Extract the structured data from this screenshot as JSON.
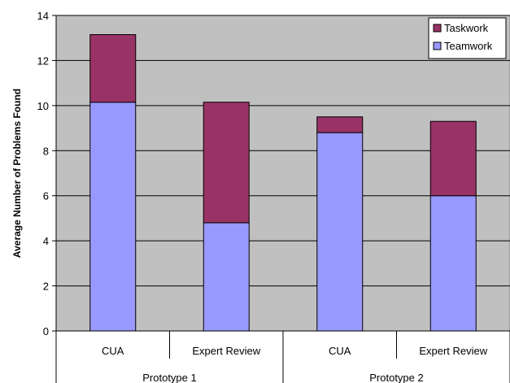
{
  "chart_data": {
    "type": "bar",
    "stacked": true,
    "title": "",
    "xlabel": "",
    "ylabel": "Average Number of Problems Found",
    "ylim": [
      0,
      14
    ],
    "yticks": [
      0,
      2,
      4,
      6,
      8,
      10,
      12,
      14
    ],
    "grid": true,
    "legend_position": "top-right",
    "plot_background": "#c0c0c0",
    "categories": [
      "CUA",
      "Expert Review",
      "CUA",
      "Expert Review"
    ],
    "groups": [
      {
        "label": "Prototype 1",
        "categories": [
          "CUA",
          "Expert Review"
        ]
      },
      {
        "label": "Prototype 2",
        "categories": [
          "CUA",
          "Expert Review"
        ]
      }
    ],
    "series": [
      {
        "name": "Teamwork",
        "color": "#9999ff",
        "values": [
          10.15,
          4.8,
          8.8,
          6.0
        ]
      },
      {
        "name": "Taskwork",
        "color": "#993366",
        "values": [
          3.0,
          5.35,
          0.7,
          3.3
        ]
      }
    ],
    "legend_order": [
      "Taskwork",
      "Teamwork"
    ]
  }
}
